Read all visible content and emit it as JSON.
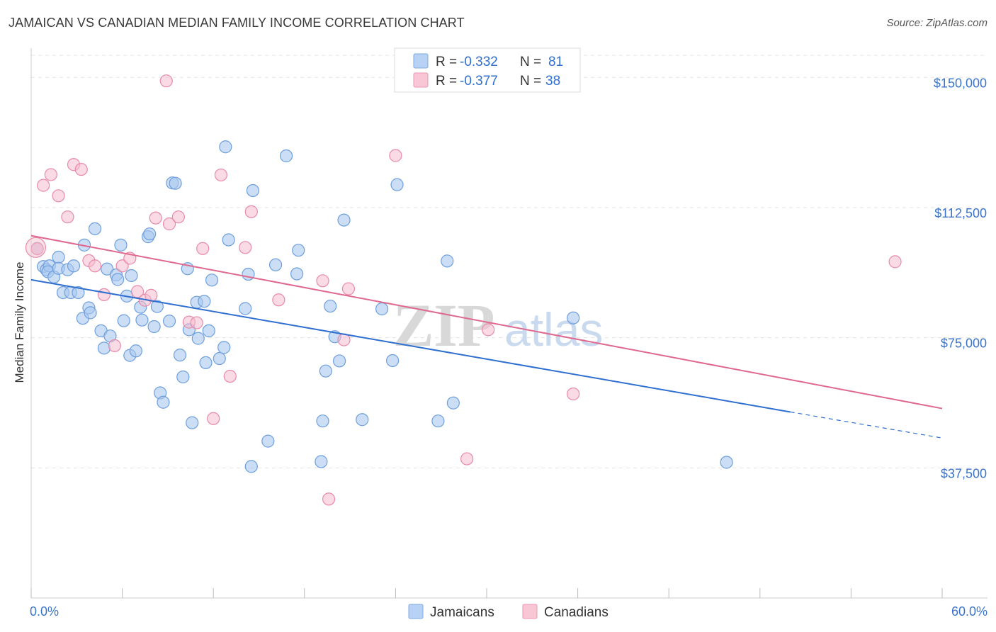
{
  "title": "JAMAICAN VS CANADIAN MEDIAN FAMILY INCOME CORRELATION CHART",
  "source": "Source: ZipAtlas.com",
  "watermark": {
    "zip": "ZIP",
    "atlas": "atlas"
  },
  "legend": {
    "r_label": "R =",
    "n_label": "N =",
    "rows": [
      {
        "r": "-0.332",
        "n": "81"
      },
      {
        "r": "-0.377",
        "n": "38"
      }
    ]
  },
  "bottom_legend": [
    "Jamaicans",
    "Canadians"
  ],
  "colors": {
    "jamaicans_fill": "#a9c8f0",
    "jamaicans_stroke": "#6e9fdc",
    "jamaicans_line": "#2f6fd0",
    "canadians_fill": "#f6bccd",
    "canadians_stroke": "#e88aa8",
    "canadians_line": "#e0688f",
    "axis_text": "#3b74c8"
  },
  "chart_data": {
    "type": "scatter",
    "title": "JAMAICAN VS CANADIAN MEDIAN FAMILY INCOME CORRELATION CHART",
    "xlabel": "",
    "ylabel": "Median Family Income",
    "xlim": [
      0,
      60
    ],
    "ylim": [
      0,
      157000
    ],
    "x_tick_labels": [
      "0.0%",
      "60.0%"
    ],
    "y_ticks": [
      37500,
      75000,
      112500,
      150000
    ],
    "y_tick_labels": [
      "$37,500",
      "$75,000",
      "$112,500",
      "$150,000"
    ],
    "grid": true,
    "legend_position": "top-center",
    "series": [
      {
        "name": "Jamaicans",
        "r": -0.332,
        "n": 81,
        "trend": {
          "x0": 0,
          "y0": 91700,
          "x1": 50,
          "y1": 53600,
          "dashed_to": 60,
          "dashed_y": 46100
        },
        "points": [
          [
            0.4,
            100700
          ],
          [
            0.8,
            95500
          ],
          [
            1.0,
            94600
          ],
          [
            1.2,
            95700
          ],
          [
            1.1,
            94000
          ],
          [
            1.5,
            92500
          ],
          [
            1.8,
            98200
          ],
          [
            1.8,
            95000
          ],
          [
            2.1,
            88000
          ],
          [
            2.4,
            94600
          ],
          [
            2.6,
            88000
          ],
          [
            2.8,
            95700
          ],
          [
            3.1,
            88000
          ],
          [
            3.4,
            80600
          ],
          [
            3.5,
            101700
          ],
          [
            3.8,
            83600
          ],
          [
            3.9,
            82200
          ],
          [
            4.2,
            106400
          ],
          [
            4.6,
            77000
          ],
          [
            4.8,
            72000
          ],
          [
            5.0,
            94800
          ],
          [
            5.2,
            75500
          ],
          [
            5.6,
            93100
          ],
          [
            5.7,
            91800
          ],
          [
            5.9,
            101700
          ],
          [
            6.1,
            79900
          ],
          [
            6.3,
            87000
          ],
          [
            6.5,
            69900
          ],
          [
            6.6,
            92900
          ],
          [
            6.9,
            71200
          ],
          [
            7.2,
            83800
          ],
          [
            7.3,
            80100
          ],
          [
            7.7,
            104100
          ],
          [
            7.8,
            104900
          ],
          [
            8.1,
            78200
          ],
          [
            8.3,
            84000
          ],
          [
            8.5,
            59100
          ],
          [
            8.7,
            56400
          ],
          [
            9.1,
            79800
          ],
          [
            9.3,
            119600
          ],
          [
            9.5,
            119500
          ],
          [
            9.8,
            70000
          ],
          [
            10.0,
            63700
          ],
          [
            10.3,
            94900
          ],
          [
            10.4,
            77300
          ],
          [
            10.6,
            50500
          ],
          [
            10.9,
            85200
          ],
          [
            11.0,
            74800
          ],
          [
            11.4,
            85500
          ],
          [
            11.5,
            67800
          ],
          [
            11.7,
            77000
          ],
          [
            11.9,
            91600
          ],
          [
            12.4,
            69000
          ],
          [
            12.7,
            72200
          ],
          [
            12.8,
            130000
          ],
          [
            13.0,
            103200
          ],
          [
            14.1,
            83400
          ],
          [
            14.3,
            93300
          ],
          [
            14.5,
            37900
          ],
          [
            14.6,
            117400
          ],
          [
            15.6,
            45200
          ],
          [
            16.1,
            96000
          ],
          [
            16.8,
            127400
          ],
          [
            17.5,
            93400
          ],
          [
            17.6,
            100200
          ],
          [
            19.1,
            39300
          ],
          [
            19.2,
            51000
          ],
          [
            19.4,
            65400
          ],
          [
            19.7,
            84100
          ],
          [
            20.0,
            75300
          ],
          [
            20.3,
            68300
          ],
          [
            20.6,
            108900
          ],
          [
            21.8,
            51400
          ],
          [
            23.1,
            83300
          ],
          [
            23.8,
            68400
          ],
          [
            24.1,
            119100
          ],
          [
            26.8,
            51000
          ],
          [
            27.4,
            97100
          ],
          [
            27.8,
            56200
          ],
          [
            35.7,
            80700
          ],
          [
            45.8,
            39100
          ]
        ]
      },
      {
        "name": "Canadians",
        "r": -0.377,
        "n": 38,
        "trend": {
          "x0": 0,
          "y0": 104400,
          "x1": 60,
          "y1": 54600
        },
        "points": [
          [
            0.4,
            100600
          ],
          [
            0.8,
            118900
          ],
          [
            1.3,
            122000
          ],
          [
            1.8,
            115900
          ],
          [
            2.4,
            109800
          ],
          [
            2.8,
            124900
          ],
          [
            3.3,
            123500
          ],
          [
            3.8,
            97200
          ],
          [
            4.2,
            95700
          ],
          [
            4.8,
            87400
          ],
          [
            5.5,
            72700
          ],
          [
            6.0,
            95700
          ],
          [
            6.5,
            97900
          ],
          [
            7.0,
            88300
          ],
          [
            7.5,
            85800
          ],
          [
            7.9,
            87200
          ],
          [
            8.2,
            109500
          ],
          [
            8.9,
            149000
          ],
          [
            9.1,
            107800
          ],
          [
            9.7,
            109800
          ],
          [
            10.4,
            79500
          ],
          [
            10.9,
            79300
          ],
          [
            11.3,
            100700
          ],
          [
            12.0,
            51700
          ],
          [
            12.5,
            121900
          ],
          [
            13.1,
            63900
          ],
          [
            14.1,
            101000
          ],
          [
            14.5,
            111300
          ],
          [
            16.3,
            85900
          ],
          [
            19.2,
            91400
          ],
          [
            19.6,
            28500
          ],
          [
            20.6,
            74400
          ],
          [
            20.9,
            89100
          ],
          [
            24.0,
            127500
          ],
          [
            28.7,
            40100
          ],
          [
            30.1,
            77300
          ],
          [
            35.7,
            58800
          ],
          [
            56.9,
            96900
          ]
        ]
      }
    ]
  }
}
